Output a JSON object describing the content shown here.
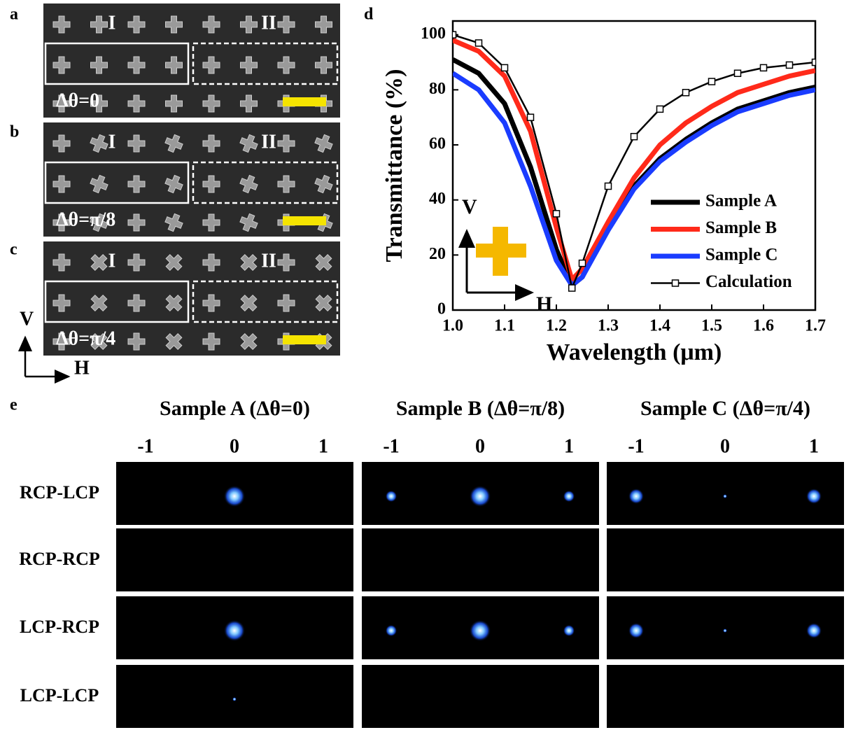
{
  "panel_labels": [
    "a",
    "b",
    "c",
    "d",
    "e"
  ],
  "sem": {
    "regions": [
      "I",
      "II"
    ],
    "angles": [
      "Δθ=0",
      "Δθ=π/8",
      "Δθ=π/4"
    ],
    "axes": [
      "V",
      "H"
    ]
  },
  "chart_data": {
    "type": "line",
    "xlabel": "Wavelength (μm)",
    "ylabel": "Transmittance (%)",
    "x": [
      1,
      1.05,
      1.1,
      1.15,
      1.2,
      1.23,
      1.25,
      1.3,
      1.35,
      1.4,
      1.45,
      1.5,
      1.55,
      1.6,
      1.65,
      1.7
    ],
    "series": [
      {
        "name": "Sample A",
        "color": "#000000",
        "values": [
          91,
          86,
          75,
          52,
          22,
          9,
          12,
          30,
          45,
          55,
          62,
          68,
          73,
          76,
          79,
          81
        ]
      },
      {
        "name": "Sample B",
        "color": "#ff2a1a",
        "values": [
          98,
          94,
          85,
          65,
          30,
          11,
          15,
          32,
          48,
          60,
          68,
          74,
          79,
          82,
          85,
          87
        ]
      },
      {
        "name": "Sample C",
        "color": "#1a3cff",
        "values": [
          86,
          80,
          68,
          45,
          18,
          9,
          12,
          29,
          44,
          54,
          61,
          67,
          72,
          75,
          78,
          80
        ]
      },
      {
        "name": "Calculation",
        "color": "#000000",
        "marker": "square",
        "values": [
          100,
          97,
          88,
          70,
          35,
          8,
          17,
          45,
          63,
          73,
          79,
          83,
          86,
          88,
          89,
          90
        ]
      }
    ],
    "xlim": [
      1,
      1.7
    ],
    "ylim": [
      0,
      105
    ],
    "xticks": [
      {
        "value": 1,
        "label": "1.0"
      },
      1.1,
      1.2,
      1.3,
      1.4,
      1.5,
      1.6,
      1.7
    ],
    "yticks": [
      0,
      20,
      40,
      60,
      80,
      100
    ],
    "legend": "lower right",
    "annotations": [
      "V",
      "H"
    ]
  },
  "far_field": {
    "samples": [
      "Sample A (Δθ=0)",
      "Sample B (Δθ=π/8)",
      "Sample C (Δθ=π/4)"
    ],
    "orders": [
      "-1",
      "0",
      "1"
    ],
    "polarizations": [
      "RCP-LCP",
      "RCP-RCP",
      "LCP-RCP",
      "LCP-LCP"
    ]
  }
}
